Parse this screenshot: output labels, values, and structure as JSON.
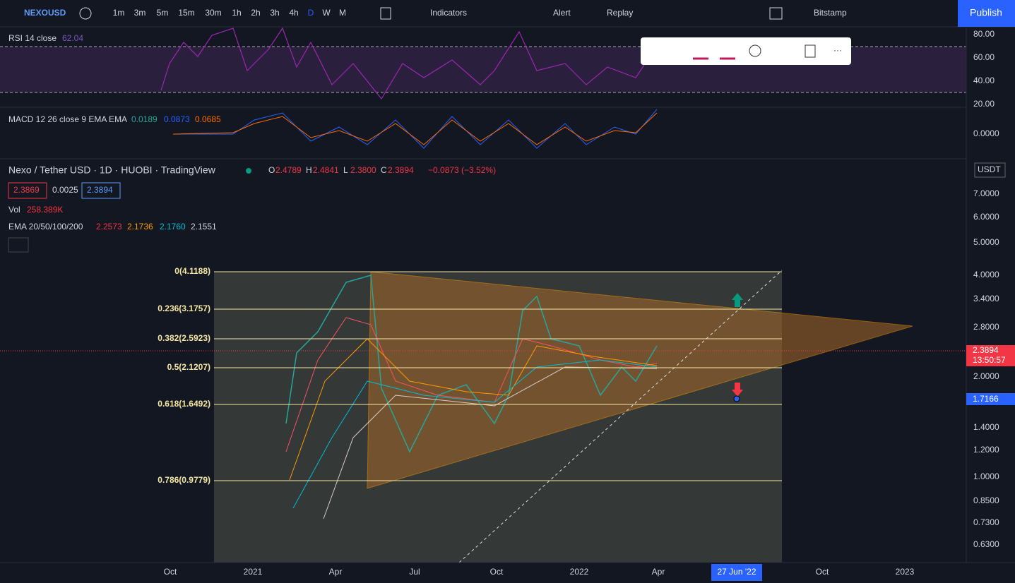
{
  "toolbar": {
    "symbol": "NEXOUSD",
    "intervals": [
      "1m",
      "3m",
      "5m",
      "15m",
      "30m",
      "1h",
      "2h",
      "3h",
      "4h",
      "D",
      "W",
      "M"
    ],
    "indicators": "Indicators",
    "alert": "Alert",
    "replay": "Replay",
    "exchange": "Bitstamp",
    "publish": "Publish"
  },
  "rsi": {
    "label": "RSI 14 close",
    "value": "62.04",
    "axis": [
      "80.00",
      "60.00",
      "40.00",
      "20.00"
    ]
  },
  "macd": {
    "label": "MACD 12 26 close 9 EMA EMA",
    "values": [
      "0.0189",
      "0.0873",
      "0.0685"
    ],
    "axis": [
      "0.0000"
    ]
  },
  "main": {
    "title": "Nexo / Tether USD · 1D · HUOBI · TradingView",
    "ohlc": [
      {
        "label": "O",
        "value": "2.4789"
      },
      {
        "label": "H",
        "value": "2.4841"
      },
      {
        "label": "L",
        "value": "2.3800"
      },
      {
        "label": "C",
        "value": "2.3894"
      }
    ],
    "change": "−0.0873 (−3.52%)",
    "quote": [
      "2.3869",
      "0.0025",
      "2.3894"
    ],
    "vol": {
      "label": "Vol",
      "value": "258.389K"
    },
    "ema": {
      "label": "EMA 20/50/100/200",
      "values": [
        "2.2573",
        "2.1736",
        "2.1760",
        "2.1551"
      ]
    },
    "fib": [
      "0(4.1188)",
      "0.236(3.1757)",
      "0.382(2.5923)",
      "0.5(2.1207)",
      "0.618(1.6492)",
      "0.786(0.9779)"
    ],
    "currency": "USDT",
    "price_axis": [
      "7.0000",
      "6.0000",
      "5.0000",
      "4.0000",
      "3.4000",
      "2.8000",
      "2.0000",
      "1.4000",
      "1.2000",
      "1.0000",
      "0.8500",
      "0.7300",
      "0.6300"
    ],
    "last_price": "2.3894",
    "countdown": "13:50:57",
    "marker_price": "1.7166"
  },
  "time_axis": [
    "Oct",
    "2021",
    "Apr",
    "Jul",
    "Oct",
    "2022",
    "Apr",
    "Oct",
    "2023"
  ],
  "time_cursor": "27 Jun '22"
}
